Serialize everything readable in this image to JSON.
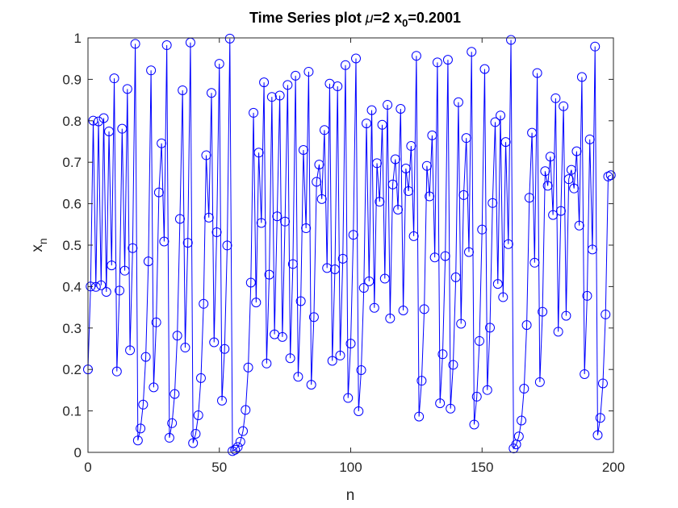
{
  "chart_data": {
    "type": "line",
    "title": "Time Series plot",
    "title_params": {
      "mu_symbol": "μ",
      "mu_eq": "=2 x",
      "x0_subscript": "0",
      "x0_eq": "=0.2001"
    },
    "xlabel": "n",
    "ylabel": "x",
    "ylabel_subscript": "n",
    "xlim": [
      0,
      200
    ],
    "ylim": [
      0,
      1
    ],
    "xticks": [
      0,
      50,
      100,
      150,
      200
    ],
    "yticks": [
      0,
      0.1,
      0.2,
      0.3,
      0.4,
      0.5,
      0.6,
      0.7,
      0.8,
      0.9,
      1
    ],
    "grid": false,
    "marker": "circle",
    "line_color": "#0000ff",
    "series": [
      {
        "values": [
          0.2001,
          0.4002,
          0.8004,
          0.3992,
          0.7984,
          0.4032,
          0.8064,
          0.3872,
          0.7744,
          0.4512,
          0.9024,
          0.1952,
          0.3904,
          0.7808,
          0.4384,
          0.8768,
          0.2464,
          0.4928,
          0.9856,
          0.0288,
          0.0576,
          0.1152,
          0.2304,
          0.4608,
          0.9216,
          0.1568,
          0.3136,
          0.6272,
          0.7456,
          0.5088,
          0.9824,
          0.0352,
          0.0704,
          0.1408,
          0.2816,
          0.5632,
          0.8736,
          0.2528,
          0.5056,
          0.9888,
          0.0224,
          0.0448,
          0.0896,
          0.1792,
          0.3584,
          0.7168,
          0.5664,
          0.8672,
          0.2656,
          0.5312,
          0.9376,
          0.1248,
          0.2496,
          0.4992,
          0.9984,
          0.0032,
          0.0064,
          0.0128,
          0.0256,
          0.0512,
          0.1024,
          0.2048,
          0.4096,
          0.8192,
          0.3616,
          0.7232,
          0.5536,
          0.8928,
          0.2144,
          0.4288,
          0.8576,
          0.2848,
          0.5696,
          0.8608,
          0.2784,
          0.5568,
          0.8864,
          0.2272,
          0.4544,
          0.9088,
          0.1824,
          0.3648,
          0.7296,
          0.5408,
          0.9184,
          0.1632,
          0.3264,
          0.6528,
          0.6944,
          0.6112,
          0.7776,
          0.4448,
          0.8896,
          0.2208,
          0.4416,
          0.8832,
          0.2336,
          0.4672,
          0.9344,
          0.1312,
          0.2624,
          0.5248,
          0.9504,
          0.0992,
          0.1984,
          0.3968,
          0.7936,
          0.4128,
          0.8256,
          0.3488,
          0.6976,
          0.6048,
          0.7904,
          0.4192,
          0.8384,
          0.3232,
          0.6464,
          0.7072,
          0.5856,
          0.8288,
          0.3424,
          0.6848,
          0.6304,
          0.7392,
          0.5216,
          0.9568,
          0.0864,
          0.1728,
          0.3456,
          0.6912,
          0.6176,
          0.7648,
          0.4704,
          0.9408,
          0.1184,
          0.2368,
          0.4736,
          0.9472,
          0.1056,
          0.2112,
          0.4224,
          0.8448,
          0.3104,
          0.6208,
          0.7584,
          0.4832,
          0.9664,
          0.0672,
          0.1344,
          0.2688,
          0.5376,
          0.9248,
          0.1504,
          0.3008,
          0.6016,
          0.7968,
          0.4064,
          0.8128,
          0.3744,
          0.7488,
          0.5024,
          0.9952,
          0.0096,
          0.0192,
          0.0384,
          0.0768,
          0.1536,
          0.3072,
          0.6144,
          0.7712,
          0.4576,
          0.9152,
          0.1696,
          0.3392,
          0.6784,
          0.6432,
          0.7136,
          0.5728,
          0.8544,
          0.2912,
          0.5824,
          0.8352,
          0.3296,
          0.6592,
          0.6816,
          0.6368,
          0.7264,
          0.5472,
          0.9056,
          0.1888,
          0.3776,
          0.7552,
          0.4896,
          0.9792,
          0.0416,
          0.0832,
          0.1664,
          0.3328,
          0.6656,
          0.6688
        ]
      }
    ]
  }
}
